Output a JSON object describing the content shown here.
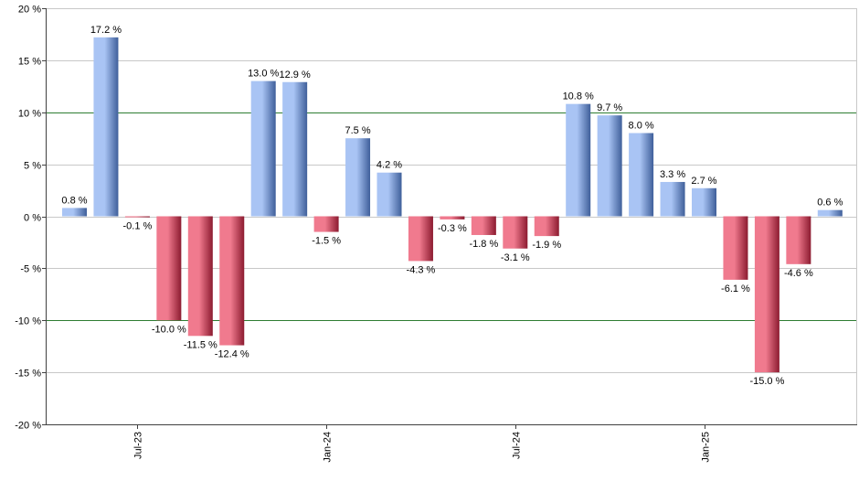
{
  "chart_data": {
    "type": "bar",
    "title": "",
    "xlabel": "",
    "ylabel": "",
    "ylim": [
      -20,
      20
    ],
    "yticks": [
      20,
      15,
      10,
      5,
      0,
      -5,
      -10,
      -15,
      -20
    ],
    "ytick_labels": [
      "20 %",
      "15 %",
      "10 %",
      "5 %",
      "0 %",
      "-5 %",
      "-10 %",
      "-15 %",
      "-20 %"
    ],
    "reference_lines": [
      10,
      -10
    ],
    "grid": true,
    "values": [
      0.8,
      17.2,
      -0.1,
      -10.0,
      -11.5,
      -12.4,
      13.0,
      12.9,
      -1.5,
      7.5,
      4.2,
      -4.3,
      -0.3,
      -1.8,
      -3.1,
      -1.9,
      10.8,
      9.7,
      8.0,
      3.3,
      2.7,
      -6.1,
      -15.0,
      -4.6,
      0.6
    ],
    "value_labels": [
      "0.8 %",
      "17.2 %",
      "-0.1 %",
      "-10.0 %",
      "-11.5 %",
      "-12.4 %",
      "13.0 %",
      "12.9 %",
      "-1.5 %",
      "7.5 %",
      "4.2 %",
      "-4.3 %",
      "-0.3 %",
      "-1.8 %",
      "-3.1 %",
      "-1.9 %",
      "10.8 %",
      "9.7 %",
      "8.0 %",
      "3.3 %",
      "2.7 %",
      "-6.1 %",
      "-15.0 %",
      "-4.6 %",
      "0.6 %"
    ],
    "x_tick_labels": [
      {
        "label": "Jul-23",
        "bar_index": 2
      },
      {
        "label": "Jan-24",
        "bar_index": 8
      },
      {
        "label": "Jul-24",
        "bar_index": 14
      },
      {
        "label": "Jan-25",
        "bar_index": 20
      }
    ],
    "colors": {
      "positive_light": "#a9c4f4",
      "positive_dark": "#3f5f9a",
      "negative_light": "#f07a8e",
      "negative_dark": "#8c1b30",
      "grid": "#c8c8c8",
      "reference": "#2e7d32",
      "axis": "#404040"
    }
  }
}
